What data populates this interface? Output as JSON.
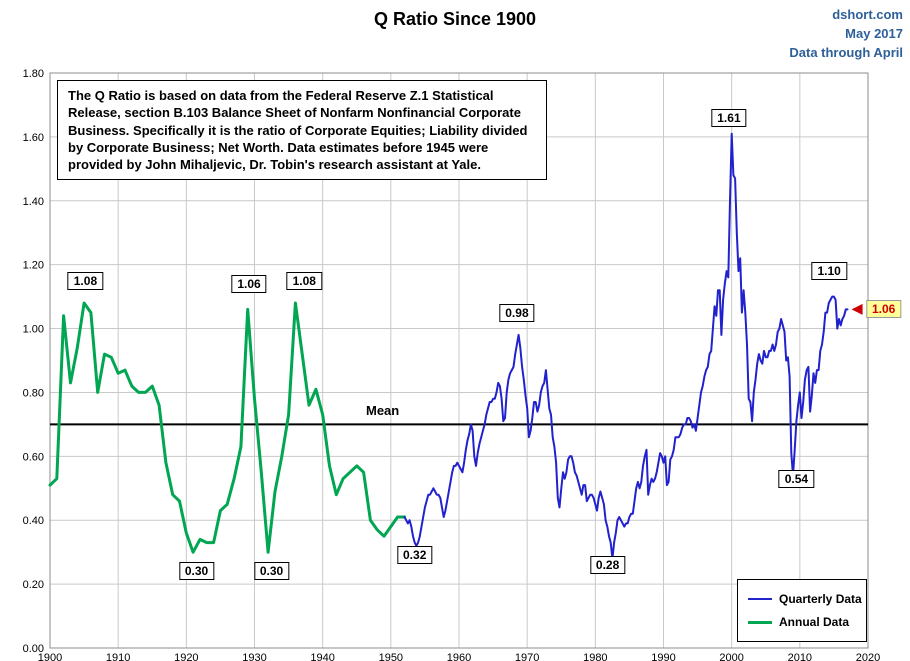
{
  "header": {
    "source": {
      "site": "dshort.com",
      "date": "May 2017",
      "note": "Data through April"
    }
  },
  "annotation": {
    "text": "The Q Ratio is based on data from the Federal Reserve Z.1 Statistical Release, section B.103 Balance Sheet of Nonfarm Nonfinancial Corporate Business. Specifically it is the ratio of Corporate Equities; Liability divided by Corporate Business; Net Worth.  Data estimates before 1945 were provided by John Mihaljevic, Dr. Tobin's research assistant at Yale."
  },
  "legend": {
    "items": [
      {
        "label": "Quarterly Data",
        "color": "#2121CD"
      },
      {
        "label": "Annual Data",
        "color": "#00A651"
      }
    ]
  },
  "colors": {
    "grid": "#C9C9C9",
    "plot_border": "#8C8C8C",
    "annual_line": "#00A651",
    "quarterly_line": "#2121CD",
    "mean_line": "#000000",
    "source_text": "#2E6099",
    "highlight_bg": "#FFFF99",
    "highlight_text": "#CC0000"
  },
  "chart_data": {
    "type": "line",
    "title": "Q Ratio Since 1900",
    "xlim": [
      1900,
      2020
    ],
    "ylim": [
      0,
      1.8
    ],
    "grid": true,
    "x_ticks": [
      1900,
      1910,
      1920,
      1930,
      1940,
      1950,
      1960,
      1970,
      1980,
      1990,
      2000,
      2010,
      2020
    ],
    "y_ticks": [
      "0.00",
      "0.20",
      "0.40",
      "0.60",
      "0.80",
      "1.00",
      "1.20",
      "1.40",
      "1.60",
      "1.80"
    ],
    "mean": {
      "label": "Mean",
      "value": 0.7
    },
    "series": [
      {
        "name": "Annual Data",
        "color": "#00A651",
        "start_year": 1900,
        "step": 1,
        "values": [
          0.51,
          0.53,
          1.04,
          0.83,
          0.94,
          1.08,
          1.05,
          0.8,
          0.92,
          0.91,
          0.86,
          0.87,
          0.82,
          0.8,
          0.8,
          0.82,
          0.76,
          0.58,
          0.48,
          0.46,
          0.36,
          0.3,
          0.34,
          0.33,
          0.33,
          0.43,
          0.45,
          0.53,
          0.63,
          1.06,
          0.78,
          0.55,
          0.3,
          0.49,
          0.6,
          0.73,
          1.08,
          0.92,
          0.76,
          0.81,
          0.73,
          0.57,
          0.48,
          0.53,
          0.55,
          0.57,
          0.55,
          0.4,
          0.37,
          0.35,
          0.38,
          0.41,
          0.41
        ]
      },
      {
        "name": "Quarterly Data",
        "color": "#2121CD",
        "start_year": 1952,
        "step": 0.25,
        "values": [
          0.41,
          0.4,
          0.39,
          0.4,
          0.38,
          0.35,
          0.33,
          0.32,
          0.33,
          0.35,
          0.38,
          0.41,
          0.44,
          0.46,
          0.48,
          0.48,
          0.49,
          0.5,
          0.49,
          0.48,
          0.48,
          0.47,
          0.44,
          0.41,
          0.43,
          0.46,
          0.49,
          0.52,
          0.55,
          0.57,
          0.57,
          0.58,
          0.57,
          0.56,
          0.55,
          0.58,
          0.62,
          0.65,
          0.67,
          0.7,
          0.68,
          0.6,
          0.57,
          0.61,
          0.64,
          0.66,
          0.68,
          0.7,
          0.73,
          0.75,
          0.77,
          0.77,
          0.78,
          0.78,
          0.8,
          0.83,
          0.82,
          0.78,
          0.71,
          0.72,
          0.8,
          0.84,
          0.86,
          0.87,
          0.88,
          0.92,
          0.95,
          0.98,
          0.94,
          0.88,
          0.84,
          0.79,
          0.75,
          0.66,
          0.68,
          0.72,
          0.77,
          0.77,
          0.74,
          0.76,
          0.8,
          0.82,
          0.83,
          0.87,
          0.81,
          0.75,
          0.73,
          0.66,
          0.63,
          0.58,
          0.47,
          0.44,
          0.5,
          0.55,
          0.53,
          0.55,
          0.59,
          0.6,
          0.6,
          0.58,
          0.55,
          0.54,
          0.52,
          0.5,
          0.48,
          0.51,
          0.51,
          0.46,
          0.47,
          0.48,
          0.48,
          0.47,
          0.45,
          0.43,
          0.47,
          0.49,
          0.47,
          0.45,
          0.4,
          0.38,
          0.35,
          0.33,
          0.28,
          0.33,
          0.36,
          0.4,
          0.41,
          0.4,
          0.39,
          0.38,
          0.39,
          0.39,
          0.41,
          0.42,
          0.42,
          0.46,
          0.5,
          0.52,
          0.5,
          0.52,
          0.57,
          0.6,
          0.62,
          0.48,
          0.51,
          0.53,
          0.52,
          0.53,
          0.55,
          0.58,
          0.61,
          0.6,
          0.58,
          0.6,
          0.51,
          0.52,
          0.59,
          0.6,
          0.62,
          0.66,
          0.66,
          0.66,
          0.67,
          0.69,
          0.7,
          0.7,
          0.72,
          0.72,
          0.71,
          0.69,
          0.7,
          0.68,
          0.72,
          0.76,
          0.8,
          0.82,
          0.85,
          0.87,
          0.88,
          0.92,
          0.93,
          1.0,
          1.07,
          1.04,
          1.12,
          1.12,
          0.98,
          1.09,
          1.14,
          1.18,
          1.16,
          1.4,
          1.61,
          1.48,
          1.47,
          1.3,
          1.18,
          1.22,
          1.05,
          1.12,
          1.05,
          0.95,
          0.78,
          0.77,
          0.71,
          0.8,
          0.84,
          0.89,
          0.92,
          0.9,
          0.89,
          0.93,
          0.91,
          0.91,
          0.93,
          0.93,
          0.95,
          0.93,
          0.95,
          0.99,
          1.0,
          1.03,
          1.01,
          0.99,
          0.9,
          0.91,
          0.85,
          0.61,
          0.54,
          0.62,
          0.71,
          0.76,
          0.8,
          0.72,
          0.77,
          0.84,
          0.87,
          0.88,
          0.74,
          0.79,
          0.86,
          0.83,
          0.87,
          0.87,
          0.93,
          0.95,
          0.99,
          1.05,
          1.05,
          1.08,
          1.09,
          1.1,
          1.1,
          1.09,
          1.0,
          1.03,
          1.01,
          1.03,
          1.04,
          1.06,
          1.06
        ]
      }
    ],
    "value_labels": [
      {
        "text": "1.08",
        "year": 1905.2,
        "value": 1.15
      },
      {
        "text": "0.30",
        "year": 1921.5,
        "value": 0.24
      },
      {
        "text": "1.06",
        "year": 1929.2,
        "value": 1.14
      },
      {
        "text": "0.30",
        "year": 1932.5,
        "value": 0.24
      },
      {
        "text": "1.08",
        "year": 1937.3,
        "value": 1.15
      },
      {
        "text": "0.32",
        "year": 1953.5,
        "value": 0.29
      },
      {
        "text": "0.98",
        "year": 1968.5,
        "value": 1.05
      },
      {
        "text": "0.28",
        "year": 1981.8,
        "value": 0.26
      },
      {
        "text": "1.61",
        "year": 1999.6,
        "value": 1.66
      },
      {
        "text": "0.54",
        "year": 2009.5,
        "value": 0.53
      },
      {
        "text": "1.10",
        "year": 2014.3,
        "value": 1.18
      },
      {
        "text": "1.06",
        "year": 2022.3,
        "value": 1.06,
        "highlight": true
      }
    ],
    "final_value": {
      "text": "1.06",
      "year": 2017.0,
      "value": 1.06
    }
  }
}
